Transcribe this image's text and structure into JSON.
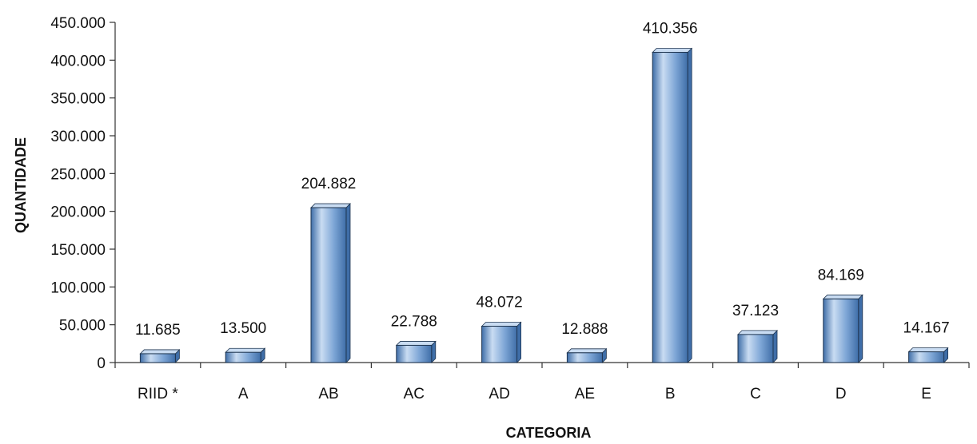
{
  "chart_data": {
    "type": "bar",
    "title": "",
    "xlabel": "CATEGORIA",
    "ylabel": "QUANTIDADE",
    "categories": [
      "RIID *",
      "A",
      "AB",
      "AC",
      "AD",
      "AE",
      "B",
      "C",
      "D",
      "E"
    ],
    "values": [
      11685,
      13500,
      204882,
      22788,
      48072,
      12888,
      410356,
      37123,
      84169,
      14167
    ],
    "data_labels": [
      "11.685",
      "13.500",
      "204.882",
      "22.788",
      "48.072",
      "12.888",
      "410.356",
      "37.123",
      "84.169",
      "14.167"
    ],
    "ylim": [
      0,
      450000
    ],
    "yticks": [
      0,
      50000,
      100000,
      150000,
      200000,
      250000,
      300000,
      350000,
      400000,
      450000
    ],
    "ytick_labels": [
      "0",
      "50.000",
      "100.000",
      "150.000",
      "200.000",
      "250.000",
      "300.000",
      "350.000",
      "400.000",
      "450.000"
    ],
    "grid": false,
    "legend": "none",
    "colors": {
      "bar_light": "#c9dcf2",
      "bar_mid": "#7ea6d6",
      "bar_dark": "#3f6ea8",
      "bar_edge": "#1f3550",
      "axis": "#333333",
      "text": "#111111"
    }
  }
}
